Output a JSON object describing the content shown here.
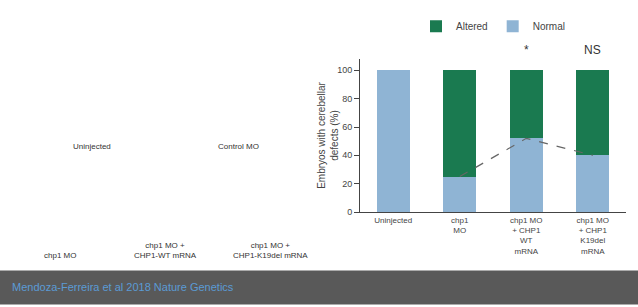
{
  "chart_data": {
    "type": "bar",
    "stacked": true,
    "ylabel": "Embryos with cerebellar\ndefects (%)",
    "categories": [
      "Uninjected",
      "chp1\nMO",
      "chp1 MO\n+ CHP1\nWT\nmRNA",
      "chp1 MO\n+ CHP1\nK19del\nmRNA"
    ],
    "series": [
      {
        "name": "Normal",
        "color": "#8fb4d4",
        "values": [
          100,
          25,
          52,
          40
        ]
      },
      {
        "name": "Altered",
        "color": "#1a7a50",
        "values": [
          0,
          75,
          48,
          60
        ]
      },
      {
        "type": "line",
        "line_style": "dashed",
        "color": "#666666",
        "values": [
          null,
          25,
          52,
          40
        ]
      }
    ],
    "ylim": [
      0,
      108
    ],
    "yticks": [
      0,
      20,
      40,
      60,
      80,
      100
    ],
    "grid": false,
    "legend": "top",
    "annotations": [
      {
        "text": "*",
        "category": "chp1 MO\n+ CHP1\nWT\nmRNA"
      },
      {
        "text": "NS",
        "category": "chp1 MO\n+ CHP1\nK19del\nmRNA"
      },
      {
        "text": "Uninjected"
      },
      {
        "text": "Control MO"
      },
      {
        "text": "chp1 MO"
      },
      {
        "text": "chp1 MO +\nCHP1-WT mRNA"
      },
      {
        "text": "chp1 MO +\nCHP1-K19del mRNA"
      },
      {
        "text": "Mendoza-Ferreira et al 2018 Nature Genetics"
      }
    ]
  }
}
